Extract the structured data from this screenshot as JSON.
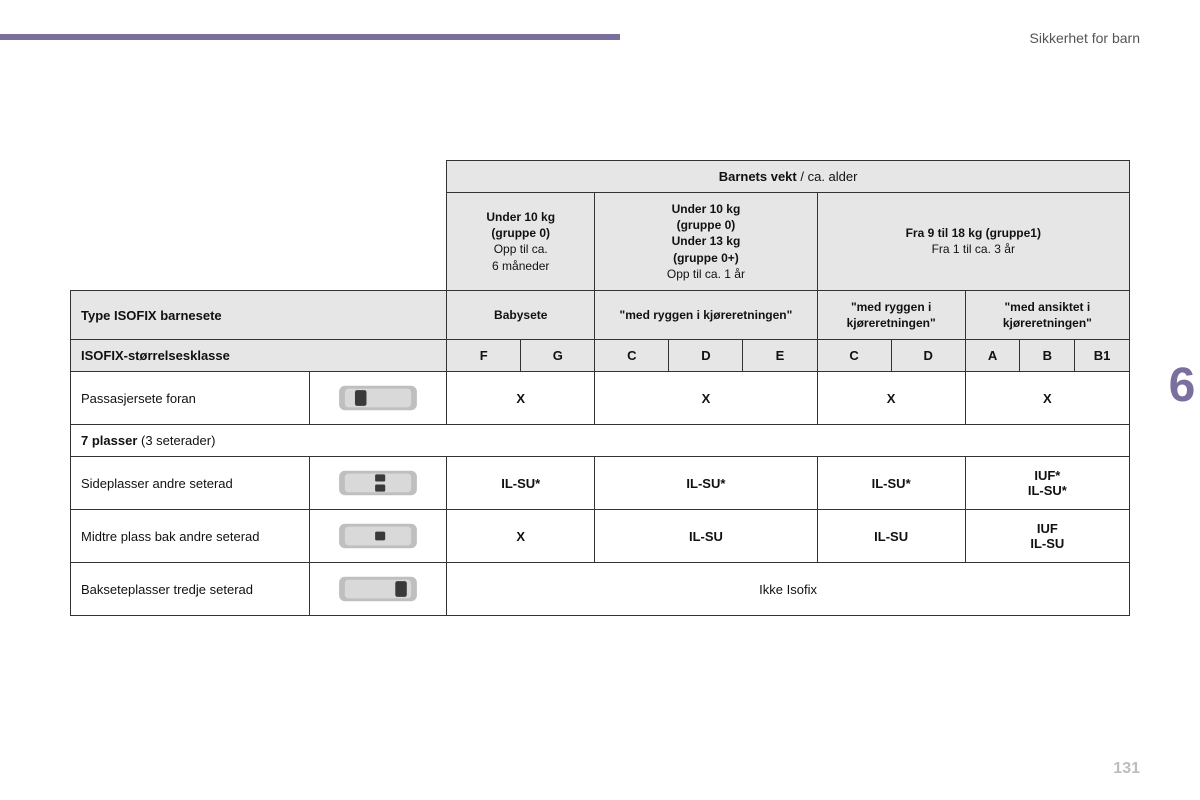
{
  "colors": {
    "accent": "#7b6f9e",
    "header_bg": "#e6e6e6",
    "border": "#333333",
    "muted_text": "#555555",
    "pagenum": "#bdbdbd"
  },
  "header": {
    "section_title": "Sikkerhet for barn"
  },
  "chapter": {
    "number": "6"
  },
  "page_number": "131",
  "table": {
    "top_header": {
      "bold": "Barnets vekt",
      "rest": " / ca. alder"
    },
    "weight_groups": {
      "g1": {
        "l1": "Under 10 kg",
        "l2": "(gruppe 0)",
        "l3": "Opp til ca.",
        "l4": "6 måneder"
      },
      "g2": {
        "l1": "Under 10 kg",
        "l2": "(gruppe 0)",
        "l3": "Under 13 kg",
        "l4": "(gruppe 0+)",
        "l5": "Opp til ca. 1 år"
      },
      "g3": {
        "l1": "Fra 9 til 18 kg (gruppe1)",
        "l2": "Fra 1 til ca. 3 år"
      }
    },
    "seat_type_row": {
      "label": "Type ISOFIX barnesete",
      "c1": "Babysete",
      "c2": "\"med ryggen i kjøreretningen\"",
      "c3": "\"med ryggen i kjøreretningen\"",
      "c4": "\"med ansiktet i kjøreretningen\""
    },
    "size_class_row": {
      "label": "ISOFIX-størrelsesklasse",
      "cells": [
        "F",
        "G",
        "C",
        "D",
        "E",
        "C",
        "D",
        "A",
        "B",
        "B1"
      ]
    },
    "rows": [
      {
        "label": "Passasjersete foran",
        "cells": [
          "X",
          "X",
          "X",
          "X"
        ],
        "icon": "front"
      },
      {
        "section": true,
        "bold": "7 plasser",
        "rest": " (3 seterader)"
      },
      {
        "label": "Sideplasser andre seterad",
        "cells": [
          "IL-SU*",
          "IL-SU*",
          "IL-SU*",
          "IUF*\nIL-SU*"
        ],
        "icon": "row2side"
      },
      {
        "label": "Midtre plass bak andre seterad",
        "cells": [
          "X",
          "IL-SU",
          "IL-SU",
          "IUF\nIL-SU"
        ],
        "icon": "row2mid"
      },
      {
        "label": "Bakseteplasser tredje seterad",
        "full": "Ikke Isofix",
        "icon": "row3"
      }
    ]
  }
}
